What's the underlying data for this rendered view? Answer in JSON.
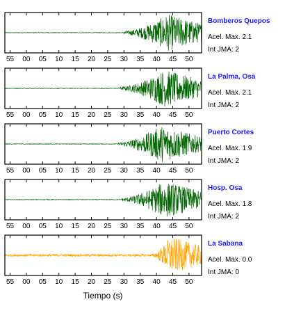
{
  "chart_data": {
    "type": "line",
    "xlabel": "Tiempo (s)",
    "tick_labels": [
      "55",
      "00",
      "05",
      "10",
      "15",
      "20",
      "25",
      "30",
      "35",
      "40",
      "45",
      "50"
    ],
    "series": [
      {
        "name": "Bomberos Quepos",
        "accel_label": "Acel. Max. 2.1",
        "jma_label": "Int JMA: 2",
        "color": "#006400",
        "onset": 32.5,
        "peak_time": 45.5,
        "amplitude": 0.95
      },
      {
        "name": "La Palma, Osa",
        "accel_label": "Acel. Max. 2.1",
        "jma_label": "Int JMA: 2",
        "color": "#006400",
        "onset": 31.5,
        "peak_time": 44.5,
        "amplitude": 0.95
      },
      {
        "name": "Puerto Cortes",
        "accel_label": "Acel. Max. 1.9",
        "jma_label": "Int JMA: 2",
        "color": "#006400",
        "onset": 31.0,
        "peak_time": 43.5,
        "amplitude": 0.95
      },
      {
        "name": "Hosp. Osa",
        "accel_label": "Acel. Max. 1.8",
        "jma_label": "Int JMA: 2",
        "color": "#006400",
        "onset": 32.0,
        "peak_time": 44.5,
        "amplitude": 0.95
      },
      {
        "name": "La Sabana",
        "accel_label": "Acel. Max. 0.0",
        "jma_label": "Int JMA: 0",
        "color": "#FFA500",
        "onset": 41.0,
        "peak_time": 46.0,
        "amplitude": 0.95
      }
    ]
  }
}
